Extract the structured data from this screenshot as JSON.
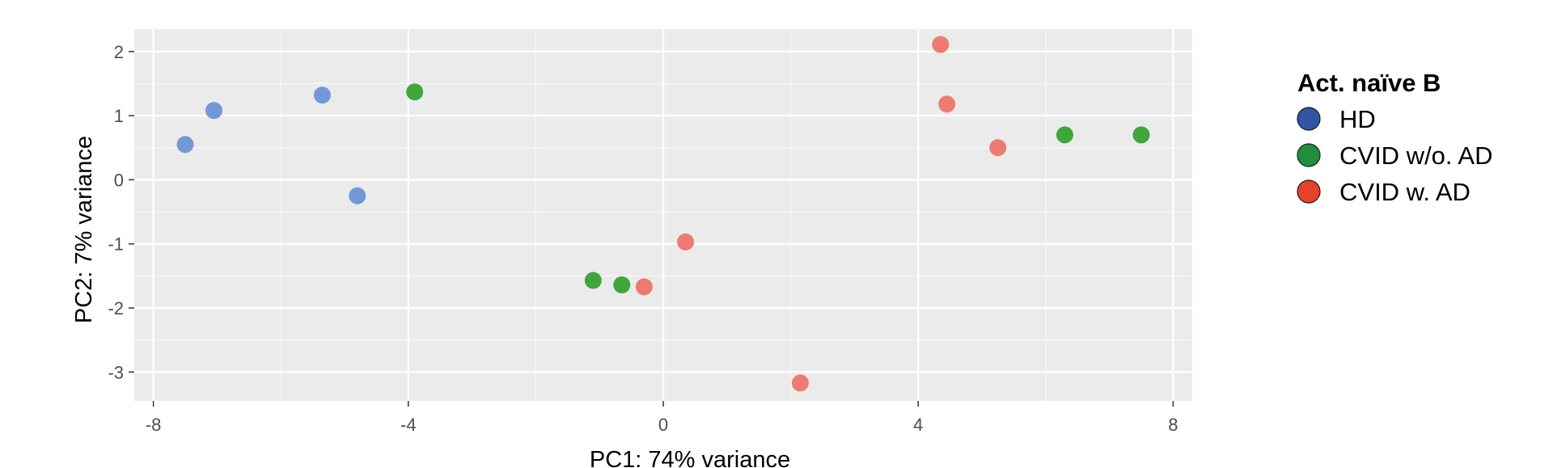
{
  "chart_data": {
    "type": "scatter",
    "xlabel": "PC1: 74% variance",
    "ylabel": "PC2: 7% variance",
    "xlim": [
      -8.3,
      8.3
    ],
    "ylim": [
      -3.45,
      2.35
    ],
    "x_ticks": [
      -8,
      -4,
      0,
      4,
      8
    ],
    "y_ticks": [
      -3,
      -2,
      -1,
      0,
      1,
      2
    ],
    "grid": true,
    "legend": {
      "title": "Act. naïve B",
      "position": "right"
    },
    "series": [
      {
        "name": "HD",
        "point_color": "#7199d6",
        "legend_color": "#2f55a4",
        "points": [
          {
            "x": -7.5,
            "y": 0.55
          },
          {
            "x": -7.05,
            "y": 1.08
          },
          {
            "x": -5.35,
            "y": 1.32
          },
          {
            "x": -4.8,
            "y": -0.25
          }
        ]
      },
      {
        "name": "CVID w/o. AD",
        "point_color": "#3fa53c",
        "legend_color": "#1f8f3a",
        "points": [
          {
            "x": -3.9,
            "y": 1.37
          },
          {
            "x": -1.1,
            "y": -1.57
          },
          {
            "x": -0.65,
            "y": -1.64
          },
          {
            "x": 6.3,
            "y": 0.7
          },
          {
            "x": 7.5,
            "y": 0.7
          }
        ]
      },
      {
        "name": "CVID w. AD",
        "point_color": "#ee7a72",
        "legend_color": "#e8412b",
        "points": [
          {
            "x": -0.3,
            "y": -1.67
          },
          {
            "x": 0.35,
            "y": -0.97
          },
          {
            "x": 2.15,
            "y": -3.17
          },
          {
            "x": 4.35,
            "y": 2.11
          },
          {
            "x": 4.45,
            "y": 1.18
          },
          {
            "x": 5.25,
            "y": 0.5
          }
        ]
      }
    ]
  }
}
